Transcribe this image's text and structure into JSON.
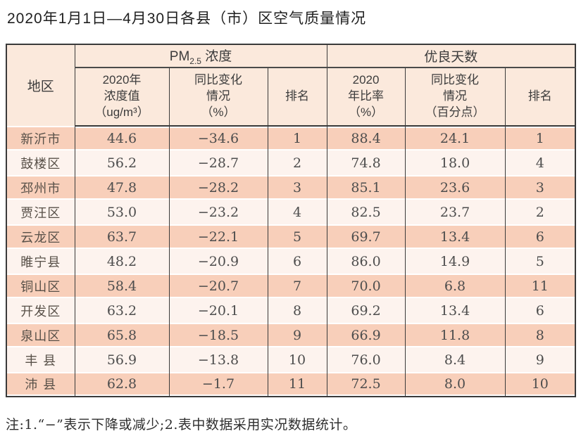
{
  "title": "2020年1月1日—4月30日各县（市）区空气质量情况",
  "table": {
    "region_header": "地区",
    "pm_group": {
      "prefix": "PM",
      "sub": "2.5",
      "suffix": " 浓度"
    },
    "days_group": "优良天数",
    "sub_headers": {
      "pm_value": "2020年\n浓度值\n（ug/m³）",
      "pm_change": "同比变化\n情况\n（%）",
      "pm_rank": "排名",
      "days_rate": "2020\n年比率\n（%）",
      "days_change": "同比变化\n情况\n（百分点）",
      "days_rank": "排名"
    },
    "rows": [
      {
        "region": "新沂市",
        "pm_value": "44.6",
        "pm_change": "−34.6",
        "pm_rank": "1",
        "days_rate": "88.4",
        "days_change": "24.1",
        "days_rank": "1"
      },
      {
        "region": "鼓楼区",
        "pm_value": "56.2",
        "pm_change": "−28.7",
        "pm_rank": "2",
        "days_rate": "74.8",
        "days_change": "18.0",
        "days_rank": "4"
      },
      {
        "region": "邳州市",
        "pm_value": "47.8",
        "pm_change": "−28.2",
        "pm_rank": "3",
        "days_rate": "85.1",
        "days_change": "23.6",
        "days_rank": "3"
      },
      {
        "region": "贾汪区",
        "pm_value": "53.0",
        "pm_change": "−23.2",
        "pm_rank": "4",
        "days_rate": "82.5",
        "days_change": "23.7",
        "days_rank": "2"
      },
      {
        "region": "云龙区",
        "pm_value": "63.7",
        "pm_change": "−22.1",
        "pm_rank": "5",
        "days_rate": "69.7",
        "days_change": "13.4",
        "days_rank": "6"
      },
      {
        "region": "睢宁县",
        "pm_value": "48.2",
        "pm_change": "−20.9",
        "pm_rank": "6",
        "days_rate": "86.0",
        "days_change": "14.9",
        "days_rank": "5"
      },
      {
        "region": "铜山区",
        "pm_value": "58.4",
        "pm_change": "−20.7",
        "pm_rank": "7",
        "days_rate": "70.0",
        "days_change": "6.8",
        "days_rank": "11"
      },
      {
        "region": "开发区",
        "pm_value": "63.2",
        "pm_change": "−20.1",
        "pm_rank": "8",
        "days_rate": "69.2",
        "days_change": "13.4",
        "days_rank": "6"
      },
      {
        "region": "泉山区",
        "pm_value": "65.8",
        "pm_change": "−18.5",
        "pm_rank": "9",
        "days_rate": "66.9",
        "days_change": "11.8",
        "days_rank": "8"
      },
      {
        "region": "丰 县",
        "pm_value": "56.9",
        "pm_change": "−13.8",
        "pm_rank": "10",
        "days_rate": "76.0",
        "days_change": "8.4",
        "days_rank": "9"
      },
      {
        "region": "沛 县",
        "pm_value": "62.8",
        "pm_change": "−1.7",
        "pm_rank": "11",
        "days_rate": "72.5",
        "days_change": "8.0",
        "days_rank": "10"
      }
    ]
  },
  "note": "注:1.“−”表示下降或减少;2.表中数据采用实况数据统计。",
  "colors": {
    "row_dark": "#f8cfba",
    "row_light": "#fdf3ee",
    "header_bg": "#fbe9dc",
    "border": "#3a3a3a"
  }
}
